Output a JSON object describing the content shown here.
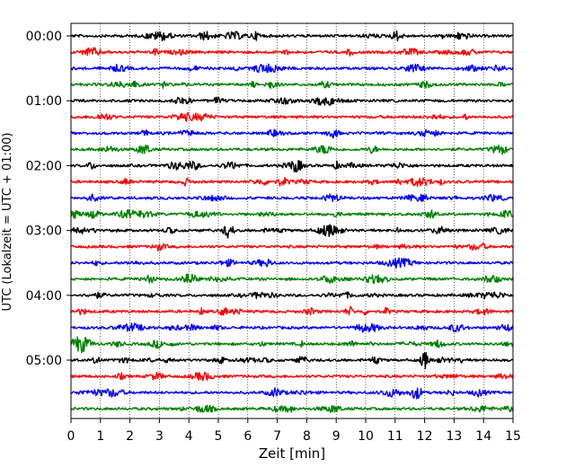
{
  "chart_data": {
    "type": "line",
    "title": "",
    "xlabel": "Zeit  [min]",
    "ylabel": "UTC (Lokalzeit = UTC + 01:00)",
    "xlim": [
      0,
      15
    ],
    "x_ticks": [
      "0",
      "1",
      "2",
      "3",
      "4",
      "5",
      "6",
      "7",
      "8",
      "9",
      "10",
      "11",
      "12",
      "13",
      "14",
      "15"
    ],
    "y_ticks": [
      "00:00",
      "01:00",
      "02:00",
      "03:00",
      "04:00",
      "05:00"
    ],
    "trace_interval_min": 15,
    "trace_count": 24,
    "trace_colors": [
      "#000000",
      "#ff0000",
      "#0000ff",
      "#008000"
    ],
    "vertical_grid": "dotted",
    "legend": "none"
  }
}
